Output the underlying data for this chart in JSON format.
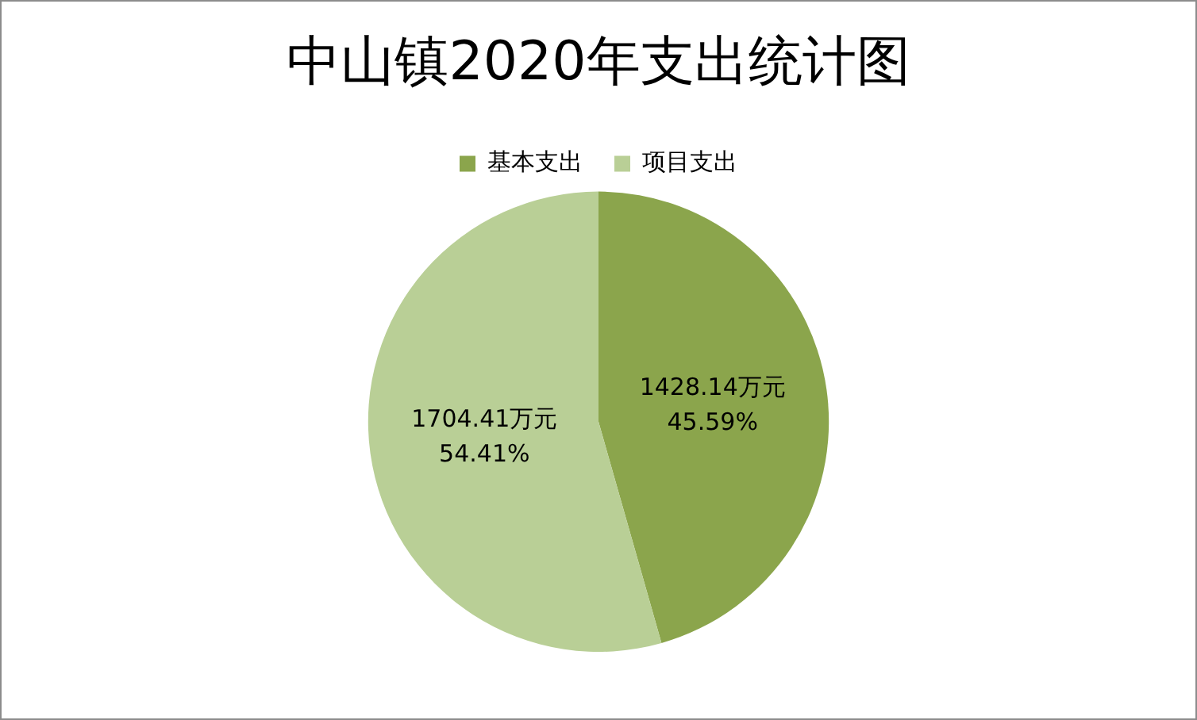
{
  "chart_data": {
    "type": "pie",
    "title": "中山镇2020年支出统计图",
    "categories": [
      "基本支出",
      "项目支出"
    ],
    "values": [
      1428.14,
      1704.41
    ],
    "colors": [
      "#8ba54c",
      "#b9cf96"
    ],
    "value_labels": [
      "1428.14万元\n45.59%",
      "1704.41万元\n54.41%"
    ],
    "legend": "top"
  }
}
